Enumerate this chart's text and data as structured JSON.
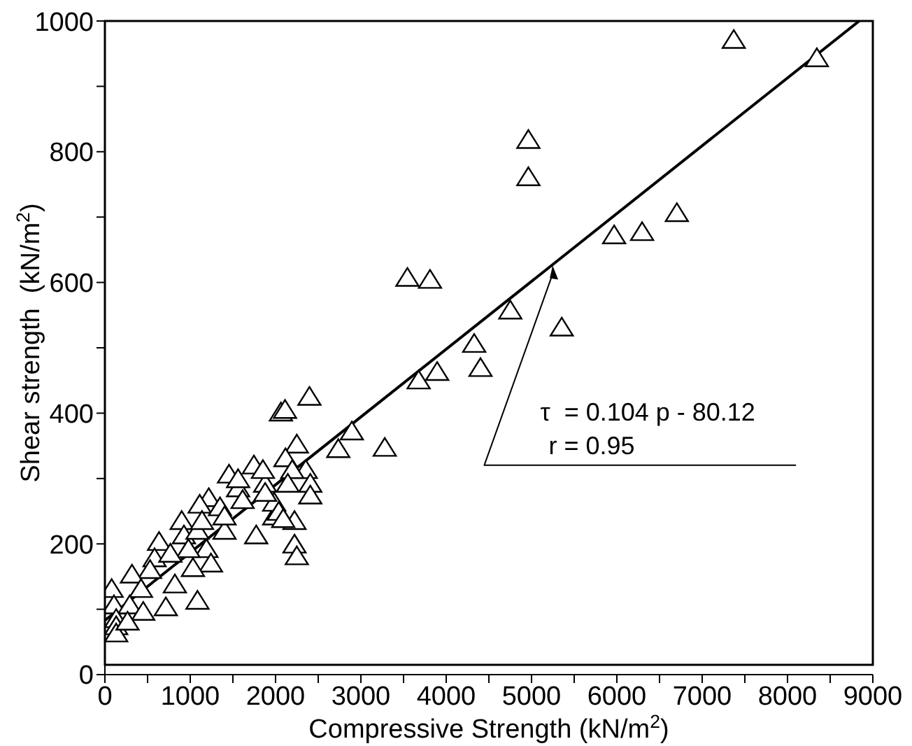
{
  "chart_data": {
    "type": "scatter",
    "xlabel": "Compressive Strength (kN/m$^{2}$)",
    "ylabel": "Shear strength  (kN/m$^{2}$)",
    "grid": false,
    "xlim": [
      0,
      9000
    ],
    "ylim": [
      0,
      1000
    ],
    "xticks": [
      0,
      {
        "value": 500,
        "label": null
      },
      1000,
      {
        "value": 1500,
        "label": null
      },
      2000,
      {
        "value": 2500,
        "label": null
      },
      3000,
      {
        "value": 3500,
        "label": null
      },
      4000,
      {
        "value": 4500,
        "label": null
      },
      5000,
      {
        "value": 5500,
        "label": null
      },
      6000,
      {
        "value": 6500,
        "label": null
      },
      7000,
      {
        "value": 7500,
        "label": null
      },
      8000,
      {
        "value": 8500,
        "label": null
      },
      9000
    ],
    "yticks": [
      0,
      {
        "value": 100,
        "label": null
      },
      200,
      {
        "value": 300,
        "label": null
      },
      400,
      {
        "value": 500,
        "label": null
      },
      600,
      {
        "value": 700,
        "label": null
      },
      800,
      {
        "value": 900,
        "label": null
      },
      1000
    ],
    "series": [
      {
        "color": "#000000",
        "marker": "triangle",
        "x": [
          7370,
          8344,
          4963,
          4963,
          6703,
          6296,
          5968,
          3545,
          3810,
          4751,
          5354,
          4328,
          4402,
          3894,
          3677,
          2397,
          2063,
          2111,
          2894,
          2735,
          3280,
          2249,
          2116,
          2354,
          2407,
          2407,
          2196,
          2143,
          2222,
          2222,
          2249,
          1773,
          1984,
          1746,
          1455,
          1878,
          1561,
          1217,
          1111,
          900,
          926,
          1349,
          1402,
          1190,
          1243,
          1085,
          1032,
          635,
          582,
          529,
          820,
          714,
          1085,
          317,
          423,
          79,
          106,
          291,
          449,
          132,
          132,
          132,
          265,
          1852,
          1561,
          1614,
          1984,
          2037,
          2090,
          1878,
          1402,
          1138,
          979,
          767
        ],
        "values": [
          969,
          941,
          816,
          759,
          704,
          675,
          670,
          605,
          602,
          555,
          529,
          504,
          467,
          461,
          448,
          423,
          399,
          403,
          370,
          343,
          345,
          350,
          329,
          311,
          290,
          272,
          311,
          290,
          233,
          197,
          179,
          211,
          240,
          318,
          304,
          290,
          283,
          268,
          258,
          233,
          211,
          254,
          218,
          190,
          168,
          218,
          161,
          201,
          176,
          158,
          136,
          101,
          111,
          151,
          129,
          129,
          104,
          104,
          94,
          83,
          72,
          61,
          79,
          311,
          297,
          265,
          261,
          247,
          236,
          276,
          240,
          233,
          190,
          183
        ]
      },
      {
        "type": "line",
        "color": "#000000",
        "x": [
          0,
          8840
        ],
        "values": [
          83,
          1000
        ]
      }
    ],
    "annotations": [
      "τ  = 0.104 p - 80.12",
      "r = 0.95"
    ]
  }
}
